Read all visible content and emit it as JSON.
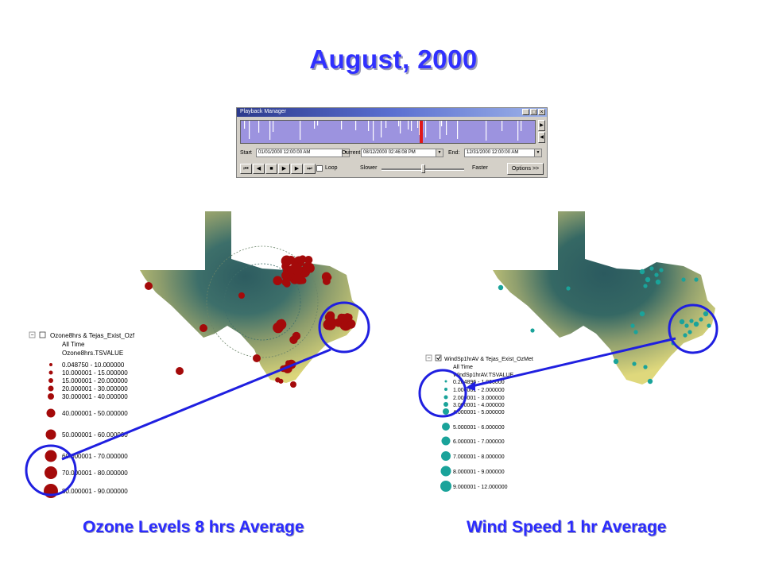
{
  "title": "August, 2000",
  "playback": {
    "window_title": "Playback Manager",
    "start_label": "Start",
    "start_value": "01/01/2000 12:00:00 AM",
    "current_label": "Current:",
    "current_value": "08/12/2000 02:46:08 PM",
    "end_label": "End:",
    "end_value": "12/31/2000 12:00:00 AM",
    "loop_label": "Loop",
    "slower_label": "Slower",
    "faster_label": "Faster",
    "options_label": "Options >>"
  },
  "left_map": {
    "caption": "Ozone Levels 8 hrs Average",
    "legend": {
      "layer": "Ozone8hrs & Tejas_Exist_Ozf",
      "time": "All Time",
      "field": "Ozone8hrs.TSVALUE",
      "classes": [
        "0.048750 - 10.000000",
        "10.000001 - 15.000000",
        "15.000001 - 20.000000",
        "20.000001 - 30.000000",
        "30.000001 - 40.000000",
        "40.000001 - 50.000000",
        "50.000001 - 60.000000",
        "60.000001 - 70.000000",
        "70.000001 - 80.000000",
        "80.000001 - 90.000000"
      ],
      "symbol_color": "#a40a0a"
    }
  },
  "right_map": {
    "caption": "Wind Speed 1 hr Average",
    "legend": {
      "layer": "WindSp1hrAV & Tejas_Exist_OzMet",
      "time": "All Time",
      "field": "WindSp1hrAV.TSVALUE",
      "classes": [
        "0.204896 - 1.000000",
        "1.000001 - 2.000000",
        "2.000001 - 3.000000",
        "3.000001 - 4.000000",
        "4.000001 - 5.000000",
        "5.000001 - 6.000000",
        "6.000001 - 7.000000",
        "7.000001 - 8.000000",
        "8.000001 - 9.000000",
        "9.000001 - 12.000000"
      ],
      "symbol_color": "#1aa39a"
    }
  },
  "colors": {
    "title": "#3030ff",
    "annotation": "#1f1fe0",
    "map_center": "#2f5f63",
    "map_edge": "#d9d47a"
  }
}
